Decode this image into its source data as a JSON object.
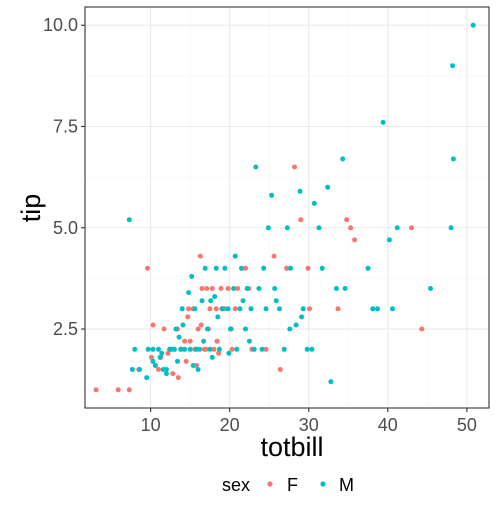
{
  "chart_data": {
    "type": "scatter",
    "title": "",
    "xlabel": "totbill",
    "ylabel": "tip",
    "xlim": [
      1.7,
      52.8
    ],
    "ylim": [
      0.55,
      10.45
    ],
    "x_ticks": [
      10,
      20,
      30,
      40,
      50
    ],
    "x_tick_labels": [
      "10",
      "20",
      "30",
      "40",
      "50"
    ],
    "y_ticks": [
      2.5,
      5.0,
      7.5,
      10.0
    ],
    "y_tick_labels": [
      "2.5",
      "5.0",
      "7.5",
      "10.0"
    ],
    "grid": true,
    "legend": {
      "title": "sex",
      "placement": "bottom",
      "entries": [
        "F",
        "M"
      ]
    },
    "series": [
      {
        "name": "F",
        "color": "#F8766D",
        "points": [
          [
            3.1,
            1.0
          ],
          [
            5.9,
            1.0
          ],
          [
            7.3,
            1.0
          ],
          [
            8.5,
            1.5
          ],
          [
            9.6,
            4.0
          ],
          [
            10.1,
            1.8
          ],
          [
            10.3,
            2.6
          ],
          [
            10.6,
            1.6
          ],
          [
            11.3,
            1.8
          ],
          [
            11.7,
            2.5
          ],
          [
            12.2,
            1.9
          ],
          [
            12.5,
            2.0
          ],
          [
            13.0,
            2.0
          ],
          [
            13.4,
            2.5
          ],
          [
            13.5,
            1.3
          ],
          [
            13.9,
            2.0
          ],
          [
            14.3,
            2.2
          ],
          [
            14.5,
            1.7
          ],
          [
            14.8,
            3.0
          ],
          [
            15.0,
            2.2
          ],
          [
            15.4,
            3.0
          ],
          [
            15.6,
            2.0
          ],
          [
            15.8,
            1.6
          ],
          [
            16.0,
            2.5
          ],
          [
            16.3,
            4.3
          ],
          [
            16.4,
            2.6
          ],
          [
            16.8,
            2.0
          ],
          [
            17.1,
            3.5
          ],
          [
            17.3,
            2.5
          ],
          [
            17.5,
            3.0
          ],
          [
            17.8,
            3.5
          ],
          [
            18.0,
            2.0
          ],
          [
            18.3,
            3.0
          ],
          [
            18.4,
            2.2
          ],
          [
            18.6,
            1.9
          ],
          [
            18.9,
            3.5
          ],
          [
            19.4,
            3.0
          ],
          [
            19.8,
            3.5
          ],
          [
            20.3,
            2.0
          ],
          [
            20.7,
            3.0
          ],
          [
            21.0,
            3.5
          ],
          [
            22.4,
            3.5
          ],
          [
            22.8,
            2.0
          ],
          [
            24.6,
            2.0
          ],
          [
            25.6,
            4.3
          ],
          [
            26.4,
            1.5
          ],
          [
            27.2,
            4.0
          ],
          [
            28.2,
            6.5
          ],
          [
            29.0,
            5.2
          ],
          [
            29.9,
            4.0
          ],
          [
            30.1,
            3.0
          ],
          [
            33.7,
            3.0
          ],
          [
            34.8,
            5.2
          ],
          [
            35.3,
            5.0
          ],
          [
            35.8,
            4.7
          ],
          [
            43.0,
            5.0
          ],
          [
            44.3,
            2.5
          ],
          [
            11.0,
            1.5
          ],
          [
            12.8,
            1.4
          ],
          [
            17.0,
            2.0
          ],
          [
            20.2,
            2.5
          ],
          [
            19.0,
            3.0
          ],
          [
            22.0,
            4.0
          ],
          [
            14.7,
            2.8
          ],
          [
            16.5,
            3.5
          ]
        ]
      },
      {
        "name": "M",
        "color": "#00BFC4",
        "points": [
          [
            7.3,
            5.2
          ],
          [
            7.7,
            1.5
          ],
          [
            8.0,
            2.0
          ],
          [
            8.6,
            1.5
          ],
          [
            9.5,
            1.3
          ],
          [
            9.7,
            2.0
          ],
          [
            10.3,
            1.7
          ],
          [
            10.3,
            2.0
          ],
          [
            10.6,
            1.6
          ],
          [
            11.0,
            2.0
          ],
          [
            11.2,
            1.8
          ],
          [
            11.6,
            1.5
          ],
          [
            12.0,
            1.5
          ],
          [
            12.4,
            2.0
          ],
          [
            12.7,
            2.0
          ],
          [
            13.0,
            2.0
          ],
          [
            13.2,
            2.5
          ],
          [
            13.4,
            1.7
          ],
          [
            13.8,
            2.0
          ],
          [
            14.0,
            3.0
          ],
          [
            14.3,
            2.0
          ],
          [
            14.8,
            3.4
          ],
          [
            15.0,
            2.0
          ],
          [
            15.4,
            1.6
          ],
          [
            15.6,
            3.0
          ],
          [
            15.8,
            2.0
          ],
          [
            16.0,
            1.5
          ],
          [
            16.2,
            2.0
          ],
          [
            16.5,
            3.2
          ],
          [
            16.9,
            4.0
          ],
          [
            17.2,
            2.5
          ],
          [
            17.5,
            2.0
          ],
          [
            17.8,
            1.8
          ],
          [
            18.1,
            3.3
          ],
          [
            18.3,
            4.0
          ],
          [
            18.7,
            2.0
          ],
          [
            19.1,
            3.0
          ],
          [
            19.4,
            4.0
          ],
          [
            19.8,
            3.0
          ],
          [
            20.1,
            2.5
          ],
          [
            20.5,
            3.5
          ],
          [
            20.9,
            2.0
          ],
          [
            21.3,
            3.0
          ],
          [
            21.5,
            4.0
          ],
          [
            22.0,
            2.5
          ],
          [
            22.2,
            3.5
          ],
          [
            22.7,
            3.0
          ],
          [
            23.1,
            2.0
          ],
          [
            23.3,
            6.5
          ],
          [
            23.7,
            3.5
          ],
          [
            24.1,
            2.0
          ],
          [
            24.3,
            4.0
          ],
          [
            24.6,
            3.0
          ],
          [
            24.9,
            5.0
          ],
          [
            25.3,
            5.8
          ],
          [
            25.7,
            3.5
          ],
          [
            26.3,
            3.0
          ],
          [
            26.9,
            2.0
          ],
          [
            27.3,
            5.0
          ],
          [
            27.7,
            4.0
          ],
          [
            28.4,
            2.6
          ],
          [
            28.9,
            5.9
          ],
          [
            29.3,
            3.0
          ],
          [
            29.8,
            2.0
          ],
          [
            30.4,
            2.0
          ],
          [
            30.7,
            5.6
          ],
          [
            31.3,
            5.0
          ],
          [
            31.7,
            4.0
          ],
          [
            32.4,
            6.0
          ],
          [
            32.8,
            1.2
          ],
          [
            33.5,
            3.5
          ],
          [
            34.3,
            6.7
          ],
          [
            34.6,
            3.5
          ],
          [
            37.5,
            4.0
          ],
          [
            38.1,
            3.0
          ],
          [
            38.7,
            3.0
          ],
          [
            39.4,
            7.6
          ],
          [
            40.2,
            4.7
          ],
          [
            40.6,
            3.0
          ],
          [
            41.2,
            5.0
          ],
          [
            45.4,
            3.5
          ],
          [
            48.2,
            9.0
          ],
          [
            48.3,
            6.7
          ],
          [
            48.0,
            5.0
          ],
          [
            50.8,
            10.0
          ],
          [
            15.2,
            3.8
          ],
          [
            14.1,
            2.6
          ],
          [
            17.6,
            3.2
          ],
          [
            12.0,
            1.4
          ],
          [
            16.7,
            2.2
          ],
          [
            19.9,
            1.9
          ],
          [
            21.7,
            3.2
          ],
          [
            18.5,
            2.8
          ],
          [
            13.6,
            2.3
          ],
          [
            11.4,
            1.9
          ],
          [
            25.9,
            3.2
          ],
          [
            22.5,
            2.2
          ],
          [
            20.7,
            4.3
          ],
          [
            27.6,
            2.5
          ],
          [
            29.1,
            2.8
          ]
        ]
      }
    ]
  }
}
